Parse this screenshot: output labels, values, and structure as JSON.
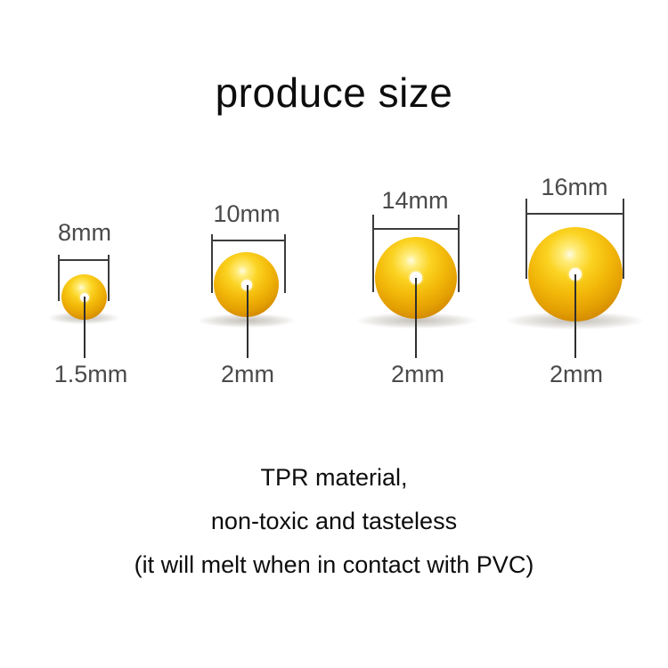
{
  "title": "produce size",
  "beads": [
    {
      "name": "bead-8mm",
      "size_label": "8mm",
      "hole_label": "1.5mm",
      "diameter_mm": 8,
      "hole_mm": 1.5
    },
    {
      "name": "bead-10mm",
      "size_label": "10mm",
      "hole_label": "2mm",
      "diameter_mm": 10,
      "hole_mm": 2
    },
    {
      "name": "bead-14mm",
      "size_label": "14mm",
      "hole_label": "2mm",
      "diameter_mm": 14,
      "hole_mm": 2
    },
    {
      "name": "bead-16mm",
      "size_label": "16mm",
      "hole_label": "2mm",
      "diameter_mm": 16,
      "hole_mm": 2
    }
  ],
  "description": {
    "line1": "TPR material,",
    "line2": "non-toxic and tasteless",
    "line3": "(it will melt when in contact with PVC)"
  },
  "colors": {
    "background": "#ffffff",
    "bead_main": "#f3ba0a",
    "bead_highlight": "#fffbe2",
    "bead_edge": "#a96a01",
    "hole": "#ffffff",
    "dimension_line": "#3c3c3c",
    "dimension_text": "#4a4a4a",
    "body_text": "#0d0d0d"
  }
}
